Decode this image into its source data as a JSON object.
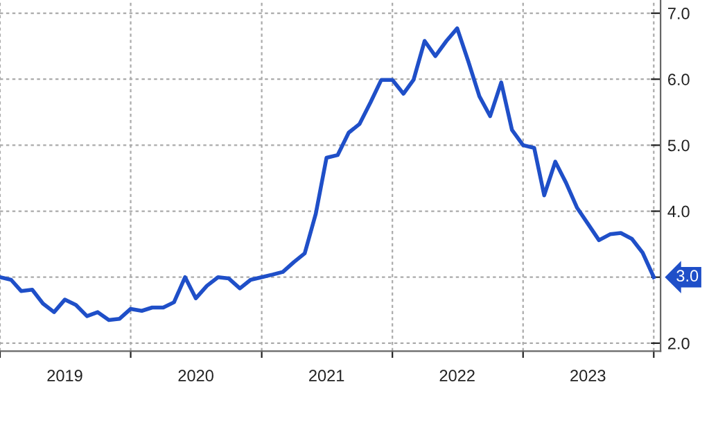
{
  "chart_data": {
    "type": "line",
    "x": [
      "2019-01",
      "2019-02",
      "2019-03",
      "2019-04",
      "2019-05",
      "2019-06",
      "2019-07",
      "2019-08",
      "2019-09",
      "2019-10",
      "2019-11",
      "2019-12",
      "2020-01",
      "2020-02",
      "2020-03",
      "2020-04",
      "2020-05",
      "2020-06",
      "2020-07",
      "2020-08",
      "2020-09",
      "2020-10",
      "2020-11",
      "2020-12",
      "2021-01",
      "2021-02",
      "2021-03",
      "2021-04",
      "2021-05",
      "2021-06",
      "2021-07",
      "2021-08",
      "2021-09",
      "2021-10",
      "2021-11",
      "2021-12",
      "2022-01",
      "2022-02",
      "2022-03",
      "2022-04",
      "2022-05",
      "2022-06",
      "2022-07",
      "2022-08",
      "2022-09",
      "2022-10",
      "2022-11",
      "2022-12",
      "2023-01",
      "2023-02",
      "2023-03",
      "2023-04",
      "2023-05",
      "2023-06",
      "2023-07",
      "2023-08",
      "2023-09",
      "2023-10",
      "2023-11",
      "2023-12",
      "2024-01"
    ],
    "series": [
      {
        "color": "#1f4fc8",
        "values": [
          3.0,
          2.96,
          2.79,
          2.81,
          2.6,
          2.47,
          2.66,
          2.58,
          2.41,
          2.47,
          2.35,
          2.37,
          2.52,
          2.49,
          2.54,
          2.54,
          2.62,
          3.0,
          2.68,
          2.87,
          3.0,
          2.98,
          2.83,
          2.96,
          3.0,
          3.04,
          3.08,
          3.23,
          3.36,
          3.96,
          4.81,
          4.85,
          5.19,
          5.32,
          5.65,
          5.99,
          5.99,
          5.78,
          5.99,
          6.58,
          6.35,
          6.58,
          6.77,
          6.27,
          5.74,
          5.44,
          5.95,
          5.23,
          5.0,
          4.96,
          4.24,
          4.75,
          4.43,
          4.05,
          3.81,
          3.56,
          3.65,
          3.67,
          3.58,
          3.37,
          3.0
        ],
        "value_labels": [
          null,
          null,
          null,
          null,
          null,
          null,
          null,
          null,
          null,
          null,
          null,
          null,
          null,
          null,
          null,
          null,
          null,
          null,
          null,
          null,
          null,
          null,
          null,
          null,
          null,
          null,
          null,
          null,
          null,
          null,
          null,
          null,
          null,
          null,
          null,
          null,
          null,
          null,
          null,
          null,
          null,
          null,
          null,
          null,
          null,
          null,
          null,
          null,
          null,
          null,
          null,
          null,
          null,
          null,
          null,
          null,
          null,
          null,
          null,
          null,
          "3.0"
        ]
      }
    ],
    "xlim": [
      "2019-01-01",
      "2024-01-20"
    ],
    "xticks": [
      {
        "value": "2019-01-01",
        "label": null
      },
      {
        "value": "2019-07-01",
        "label": "2019"
      },
      {
        "value": "2020-01-01",
        "label": null
      },
      {
        "value": "2020-07-01",
        "label": "2020"
      },
      {
        "value": "2021-01-01",
        "label": null
      },
      {
        "value": "2021-07-01",
        "label": "2021"
      },
      {
        "value": "2022-01-01",
        "label": null
      },
      {
        "value": "2022-07-01",
        "label": "2022"
      },
      {
        "value": "2023-01-01",
        "label": null
      },
      {
        "value": "2023-07-01",
        "label": "2023"
      },
      {
        "value": "2024-01-01",
        "label": null
      }
    ],
    "ylim": [
      1.88,
      7.2
    ],
    "yticks": [
      {
        "value": 2,
        "label": "2.0"
      },
      {
        "value": 3,
        "label": null
      },
      {
        "value": 4,
        "label": "4.0"
      },
      {
        "value": 5,
        "label": "5.0"
      },
      {
        "value": 6,
        "label": "6.0"
      },
      {
        "value": 7,
        "label": "7.0"
      }
    ],
    "grid": true,
    "line_style": "solid",
    "legend": false
  }
}
